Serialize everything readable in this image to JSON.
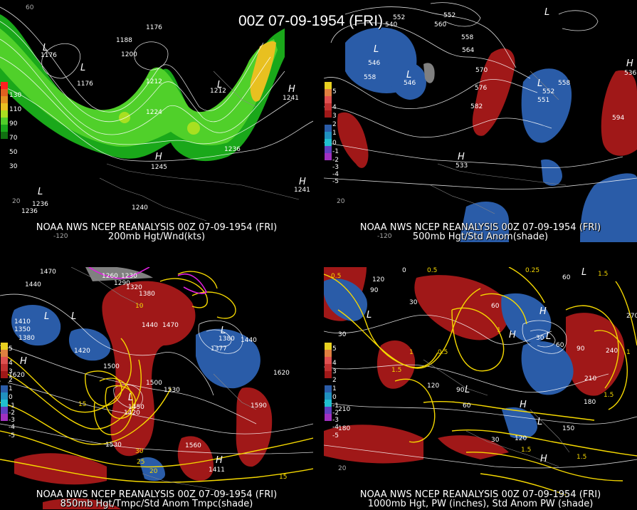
{
  "title": "00Z 07-09-1954 (FRI)",
  "panels": {
    "p1": {
      "line1": "NOAA NWS NCEP REANALYSIS 00Z 07-09-1954 (FRI)",
      "line2": "200mb Hgt/Wnd(kts)",
      "scale": [
        "130",
        "110",
        "90",
        "70",
        "50",
        "30"
      ],
      "labels": [
        "1176",
        "1188",
        "1200",
        "1212",
        "1224",
        "1236",
        "1176",
        "1176",
        "1212",
        "1236",
        "1240",
        "1236",
        "1245",
        "1241",
        "1241"
      ],
      "lon": [
        "60",
        "-120",
        "20"
      ]
    },
    "p2": {
      "line1": "NOAA NWS NCEP REANALYSIS 00Z 07-09-1954 (FRI)",
      "line2": "500mb Hgt/Std Anom(shade)",
      "scale": [
        "5",
        "4",
        "3",
        "2",
        "1",
        "0",
        "-1",
        "-2",
        "-3",
        "-4",
        "-5"
      ],
      "labels": [
        "540",
        "552",
        "558",
        "546",
        "558",
        "564",
        "570",
        "576",
        "582",
        "594",
        "552",
        "558",
        "546",
        "533",
        "551",
        "536",
        "552",
        "560",
        "20",
        "-120"
      ]
    },
    "p3": {
      "line1": "NOAA NWS NCEP REANALYSIS 00Z 07-09-1954 (FRI)",
      "line2": "850mb Hgt/Tmpc/Std Anom Tmpc(shade)",
      "scale": [
        "5",
        "4",
        "3",
        "2",
        "1",
        "0",
        "-1",
        "-2",
        "-3",
        "-4",
        "-5"
      ],
      "labels": [
        "1470",
        "1440",
        "1410",
        "1380",
        "1350",
        "1260",
        "1230",
        "1290",
        "1320",
        "1380",
        "1440",
        "1470",
        "1500",
        "1530",
        "1500",
        "1420",
        "1560",
        "1590",
        "1620",
        "1530",
        "1620",
        "1380",
        "1377",
        "1440",
        "10",
        "15",
        "15",
        "25",
        "30",
        "20",
        "1450",
        "1420",
        "1411"
      ]
    },
    "p4": {
      "line1": "NOAA NWS NCEP REANALYSIS 00Z 07-09-1954 (FRI)",
      "line2": "1000mb Hgt, PW (inches), Std Anom PW (shade)",
      "scale": [
        "5",
        "4",
        "3",
        "2",
        "1",
        "0",
        "-1",
        "-2",
        "-3",
        "-4",
        "-5"
      ],
      "labels": [
        "0.5",
        "120",
        "90",
        "30",
        "0",
        "60",
        "30",
        "0.25",
        "60",
        "1.5",
        "0.5",
        "1",
        "30",
        "60",
        "90",
        "240",
        "270",
        "1",
        "1.5",
        "1",
        "0.5",
        "120",
        "210",
        "180",
        "150",
        "90",
        "60",
        "30",
        "120",
        "1.5",
        "1.5",
        "1.5",
        "210",
        "180",
        "20"
      ]
    }
  }
}
